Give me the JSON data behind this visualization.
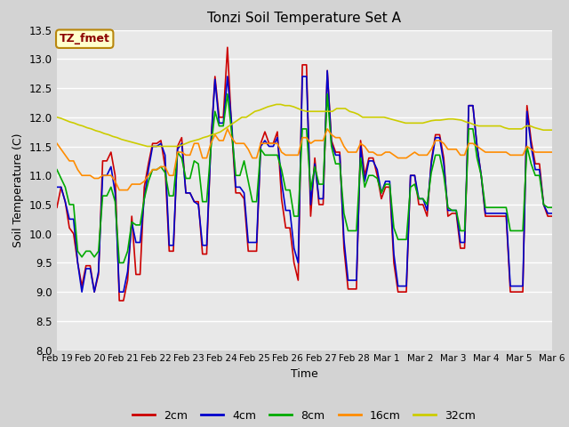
{
  "title": "Tonzi Soil Temperature Set A",
  "xlabel": "Time",
  "ylabel": "Soil Temperature (C)",
  "ylim": [
    8.0,
    13.5
  ],
  "fig_bg_color": "#d3d3d3",
  "plot_bg_color": "#e8e8e8",
  "annotation_text": "TZ_fmet",
  "annotation_bg": "#ffffcc",
  "annotation_border": "#b8860b",
  "annotation_text_color": "#8b0000",
  "legend_labels": [
    "2cm",
    "4cm",
    "8cm",
    "16cm",
    "32cm"
  ],
  "line_colors": [
    "#cc0000",
    "#0000cc",
    "#00aa00",
    "#ff8c00",
    "#cccc00"
  ],
  "xtick_labels": [
    "Feb 19",
    "Feb 20",
    "Feb 21",
    "Feb 22",
    "Feb 23",
    "Feb 24",
    "Feb 25",
    "Feb 26",
    "Feb 27",
    "Feb 28",
    "Mar 1",
    "Mar 2",
    "Mar 3",
    "Mar 4",
    "Mar 5",
    "Mar 6"
  ],
  "ytick_values": [
    8.0,
    8.5,
    9.0,
    9.5,
    10.0,
    10.5,
    11.0,
    11.5,
    12.0,
    12.5,
    13.0,
    13.5
  ],
  "n_days": 16,
  "pts_per_day": 4,
  "series_2cm": [
    10.45,
    10.8,
    10.55,
    10.1,
    10.0,
    9.5,
    9.1,
    9.45,
    9.45,
    9.0,
    9.3,
    11.25,
    11.25,
    11.4,
    11.0,
    8.85,
    8.85,
    9.2,
    10.3,
    9.3,
    9.3,
    10.8,
    11.2,
    11.55,
    11.55,
    11.6,
    11.15,
    9.7,
    9.7,
    11.5,
    11.65,
    10.7,
    10.7,
    10.55,
    10.55,
    9.65,
    9.65,
    11.55,
    12.7,
    12.0,
    12.0,
    13.2,
    11.8,
    10.7,
    10.7,
    10.6,
    9.7,
    9.7,
    9.7,
    11.55,
    11.75,
    11.55,
    11.55,
    11.75,
    10.6,
    10.1,
    10.1,
    9.5,
    9.2,
    12.9,
    12.9,
    10.3,
    11.3,
    10.5,
    10.5,
    12.8,
    11.6,
    11.4,
    11.4,
    9.75,
    9.05,
    9.05,
    9.05,
    11.6,
    11.0,
    11.3,
    11.3,
    11.0,
    10.6,
    10.8,
    10.8,
    9.5,
    9.0,
    9.0,
    9.0,
    11.0,
    11.0,
    10.5,
    10.5,
    10.3,
    11.25,
    11.7,
    11.7,
    11.3,
    10.3,
    10.35,
    10.35,
    9.75,
    9.75,
    12.2,
    12.2,
    11.5,
    11.0,
    10.3,
    10.3,
    10.3,
    10.3,
    10.3,
    10.3,
    9.0,
    9.0,
    9.0,
    9.0,
    12.2,
    11.6,
    11.2,
    11.2,
    10.5,
    10.3,
    10.3
  ],
  "series_4cm": [
    10.8,
    10.8,
    10.55,
    10.25,
    10.25,
    9.5,
    9.0,
    9.4,
    9.4,
    9.0,
    9.35,
    11.0,
    11.0,
    11.15,
    10.7,
    9.0,
    9.0,
    9.35,
    10.2,
    9.85,
    9.85,
    10.6,
    11.1,
    11.5,
    11.5,
    11.55,
    11.35,
    9.8,
    9.8,
    11.45,
    11.55,
    10.7,
    10.7,
    10.55,
    10.5,
    9.8,
    9.8,
    11.5,
    12.65,
    11.9,
    11.9,
    12.7,
    11.9,
    10.8,
    10.8,
    10.7,
    9.85,
    9.85,
    9.85,
    11.5,
    11.6,
    11.5,
    11.5,
    11.65,
    10.9,
    10.4,
    10.4,
    9.75,
    9.5,
    12.7,
    12.7,
    10.5,
    11.2,
    10.6,
    10.6,
    12.8,
    11.55,
    11.35,
    11.35,
    9.9,
    9.2,
    9.2,
    9.2,
    11.5,
    10.9,
    11.25,
    11.25,
    11.1,
    10.7,
    10.9,
    10.9,
    9.65,
    9.1,
    9.1,
    9.1,
    11.0,
    11.0,
    10.6,
    10.6,
    10.4,
    11.2,
    11.65,
    11.65,
    11.2,
    10.4,
    10.4,
    10.4,
    9.85,
    9.85,
    12.2,
    12.2,
    11.5,
    11.0,
    10.35,
    10.35,
    10.35,
    10.35,
    10.35,
    10.35,
    9.1,
    9.1,
    9.1,
    9.1,
    12.1,
    11.5,
    11.1,
    11.1,
    10.5,
    10.35,
    10.35
  ],
  "series_8cm": [
    11.1,
    10.95,
    10.8,
    10.5,
    10.5,
    9.7,
    9.6,
    9.7,
    9.7,
    9.6,
    9.7,
    10.65,
    10.65,
    10.8,
    10.55,
    9.5,
    9.5,
    9.7,
    10.2,
    10.15,
    10.15,
    10.6,
    10.9,
    11.1,
    11.1,
    11.15,
    11.05,
    10.65,
    10.65,
    11.4,
    11.3,
    10.95,
    10.95,
    11.25,
    11.2,
    10.55,
    10.55,
    11.45,
    12.1,
    11.85,
    11.85,
    12.4,
    11.75,
    11.0,
    11.0,
    11.25,
    10.9,
    10.55,
    10.55,
    11.45,
    11.35,
    11.35,
    11.35,
    11.35,
    11.1,
    10.75,
    10.75,
    10.3,
    10.3,
    11.8,
    11.8,
    10.75,
    11.15,
    10.85,
    10.85,
    12.4,
    11.5,
    11.2,
    11.2,
    10.35,
    10.05,
    10.05,
    10.05,
    11.3,
    10.8,
    11.0,
    11.0,
    10.95,
    10.7,
    10.85,
    10.85,
    10.1,
    9.9,
    9.9,
    9.9,
    10.8,
    10.85,
    10.6,
    10.6,
    10.5,
    11.05,
    11.35,
    11.35,
    11.0,
    10.45,
    10.4,
    10.4,
    10.05,
    10.05,
    11.8,
    11.8,
    11.3,
    11.0,
    10.45,
    10.45,
    10.45,
    10.45,
    10.45,
    10.45,
    10.05,
    10.05,
    10.05,
    10.05,
    11.5,
    11.2,
    11.0,
    11.0,
    10.5,
    10.45,
    10.45
  ],
  "series_16cm": [
    11.55,
    11.45,
    11.35,
    11.25,
    11.25,
    11.1,
    11.0,
    11.0,
    11.0,
    10.95,
    10.95,
    11.0,
    11.0,
    11.0,
    10.9,
    10.75,
    10.75,
    10.75,
    10.85,
    10.85,
    10.85,
    10.9,
    11.0,
    11.1,
    11.1,
    11.15,
    11.15,
    11.0,
    11.0,
    11.4,
    11.4,
    11.35,
    11.35,
    11.55,
    11.55,
    11.3,
    11.3,
    11.55,
    11.7,
    11.6,
    11.6,
    11.8,
    11.65,
    11.55,
    11.55,
    11.55,
    11.45,
    11.3,
    11.3,
    11.55,
    11.55,
    11.55,
    11.55,
    11.55,
    11.4,
    11.35,
    11.35,
    11.35,
    11.35,
    11.65,
    11.65,
    11.55,
    11.6,
    11.6,
    11.6,
    11.8,
    11.7,
    11.65,
    11.65,
    11.5,
    11.4,
    11.4,
    11.4,
    11.55,
    11.5,
    11.4,
    11.4,
    11.35,
    11.35,
    11.4,
    11.4,
    11.35,
    11.3,
    11.3,
    11.3,
    11.35,
    11.4,
    11.35,
    11.35,
    11.35,
    11.45,
    11.6,
    11.6,
    11.55,
    11.45,
    11.45,
    11.45,
    11.35,
    11.35,
    11.55,
    11.55,
    11.5,
    11.45,
    11.4,
    11.4,
    11.4,
    11.4,
    11.4,
    11.4,
    11.35,
    11.35,
    11.35,
    11.35,
    11.5,
    11.45,
    11.4,
    11.4,
    11.4,
    11.4,
    11.4
  ],
  "series_32cm": [
    12.0,
    11.98,
    11.95,
    11.92,
    11.9,
    11.87,
    11.85,
    11.82,
    11.8,
    11.77,
    11.75,
    11.72,
    11.7,
    11.67,
    11.65,
    11.62,
    11.6,
    11.58,
    11.56,
    11.54,
    11.52,
    11.5,
    11.5,
    11.5,
    11.5,
    11.5,
    11.5,
    11.5,
    11.5,
    11.52,
    11.55,
    11.58,
    11.6,
    11.62,
    11.65,
    11.67,
    11.7,
    11.72,
    11.75,
    11.8,
    11.85,
    11.9,
    11.95,
    12.0,
    12.0,
    12.05,
    12.1,
    12.12,
    12.15,
    12.18,
    12.2,
    12.22,
    12.22,
    12.2,
    12.2,
    12.18,
    12.15,
    12.12,
    12.1,
    12.1,
    12.1,
    12.1,
    12.1,
    12.1,
    12.1,
    12.15,
    12.15,
    12.15,
    12.1,
    12.08,
    12.05,
    12.0,
    12.0,
    12.0,
    12.0,
    12.0,
    12.0,
    11.98,
    11.96,
    11.94,
    11.92,
    11.9,
    11.9,
    11.9,
    11.9,
    11.9,
    11.92,
    11.94,
    11.95,
    11.95,
    11.96,
    11.97,
    11.97,
    11.96,
    11.95,
    11.92,
    11.9,
    11.87,
    11.85,
    11.85,
    11.85,
    11.85,
    11.85,
    11.85,
    11.82,
    11.8,
    11.8,
    11.8,
    11.8,
    11.85,
    11.85,
    11.82,
    11.8,
    11.78,
    11.78,
    11.78
  ]
}
